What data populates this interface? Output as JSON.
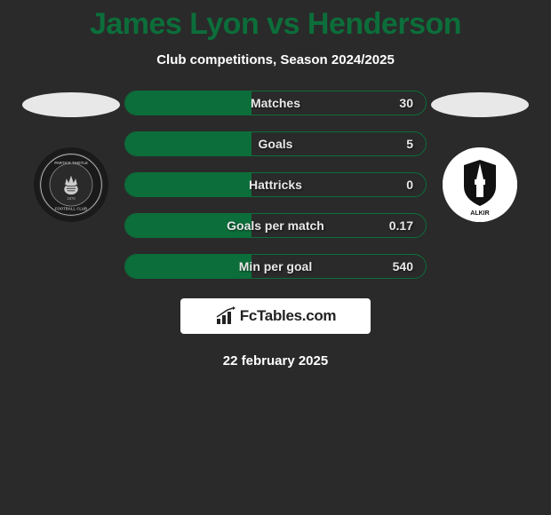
{
  "header": {
    "title": "James Lyon vs Henderson",
    "subtitle": "Club competitions, Season 2024/2025",
    "title_color": "#0c6e3a",
    "title_fontsize": 34
  },
  "players": {
    "left": {
      "name": "James Lyon",
      "club_badge_name": "partick-thistle-badge"
    },
    "right": {
      "name": "Henderson",
      "club_badge_name": "falkirk-badge"
    }
  },
  "stats": [
    {
      "label": "Matches",
      "value": "30",
      "fill_pct": 42
    },
    {
      "label": "Goals",
      "value": "5",
      "fill_pct": 42
    },
    {
      "label": "Hattricks",
      "value": "0",
      "fill_pct": 42
    },
    {
      "label": "Goals per match",
      "value": "0.17",
      "fill_pct": 42
    },
    {
      "label": "Min per goal",
      "value": "540",
      "fill_pct": 42
    }
  ],
  "colors": {
    "background": "#2a2a2a",
    "bar_border": "#0c6e3a",
    "bar_fill": "#0c6e3a",
    "text": "#ffffff",
    "ellipse": "#e8e8e8"
  },
  "footer": {
    "brand": "FcTables.com",
    "date": "22 february 2025"
  }
}
